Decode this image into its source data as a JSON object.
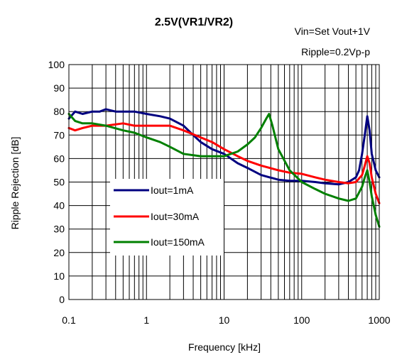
{
  "chart_data": {
    "type": "line",
    "title": "2.5V(VR1/VR2)",
    "annotations": [
      "Vin=Set Vout+1V",
      "Ripple=0.2Vp-p"
    ],
    "xlabel": "Frequency [kHz]",
    "ylabel": "Ripple Rejection [dB]",
    "x_scale": "log",
    "xlim": [
      0.1,
      1000
    ],
    "ylim": [
      0,
      100
    ],
    "x_ticks": [
      0.1,
      1,
      10,
      100,
      1000
    ],
    "x_tick_labels": [
      "0.1",
      "1",
      "10",
      "100",
      "1000"
    ],
    "y_ticks": [
      0,
      10,
      20,
      30,
      40,
      50,
      60,
      70,
      80,
      90,
      100
    ],
    "y_tick_labels": [
      "0",
      "10",
      "20",
      "30",
      "40",
      "50",
      "60",
      "70",
      "80",
      "90",
      "100"
    ],
    "grid": true,
    "legend_position": "lower-left",
    "series": [
      {
        "name": "Iout=1mA",
        "color": "#000080",
        "x": [
          0.1,
          0.12,
          0.15,
          0.2,
          0.25,
          0.3,
          0.4,
          0.5,
          0.7,
          1,
          1.5,
          2,
          3,
          4,
          5,
          7,
          10,
          15,
          20,
          30,
          50,
          70,
          100,
          150,
          200,
          300,
          400,
          500,
          550,
          600,
          650,
          700,
          750,
          800,
          900,
          1000
        ],
        "y": [
          77,
          80,
          79,
          80,
          80,
          81,
          80,
          80,
          80,
          79,
          78,
          77,
          74,
          70,
          67,
          64,
          62,
          58,
          56,
          53,
          51,
          50.5,
          50.5,
          50,
          49.5,
          49,
          50,
          52,
          55,
          62,
          70,
          78,
          72,
          62,
          55,
          52
        ]
      },
      {
        "name": "Iout=30mA",
        "color": "#ff0000",
        "x": [
          0.1,
          0.12,
          0.15,
          0.2,
          0.3,
          0.5,
          0.7,
          1,
          1.5,
          2,
          3,
          5,
          7,
          10,
          15,
          20,
          30,
          50,
          70,
          100,
          150,
          200,
          300,
          400,
          500,
          600,
          650,
          700,
          750,
          800,
          900,
          1000
        ],
        "y": [
          73,
          72,
          73,
          74,
          74,
          75,
          74,
          74,
          74,
          74,
          72,
          69,
          67,
          64,
          61,
          59,
          57,
          55,
          54,
          53.5,
          52,
          51,
          50,
          49.5,
          50,
          53,
          57,
          61,
          58,
          52,
          45,
          41
        ]
      },
      {
        "name": "Iout=150mA",
        "color": "#008000",
        "x": [
          0.1,
          0.12,
          0.15,
          0.2,
          0.3,
          0.5,
          0.7,
          1,
          1.5,
          2,
          3,
          5,
          7,
          10,
          15,
          20,
          25,
          30,
          35,
          38,
          42,
          50,
          70,
          100,
          150,
          200,
          300,
          400,
          500,
          600,
          650,
          700,
          750,
          800,
          900,
          1000
        ],
        "y": [
          79,
          76,
          75,
          75,
          74,
          72,
          71,
          69,
          67,
          65,
          62,
          61,
          61,
          61,
          63,
          66,
          69,
          73,
          77,
          79,
          74,
          64,
          55,
          50,
          47,
          45,
          43,
          42,
          43,
          48,
          52,
          55,
          50,
          44,
          36,
          31
        ]
      }
    ]
  }
}
